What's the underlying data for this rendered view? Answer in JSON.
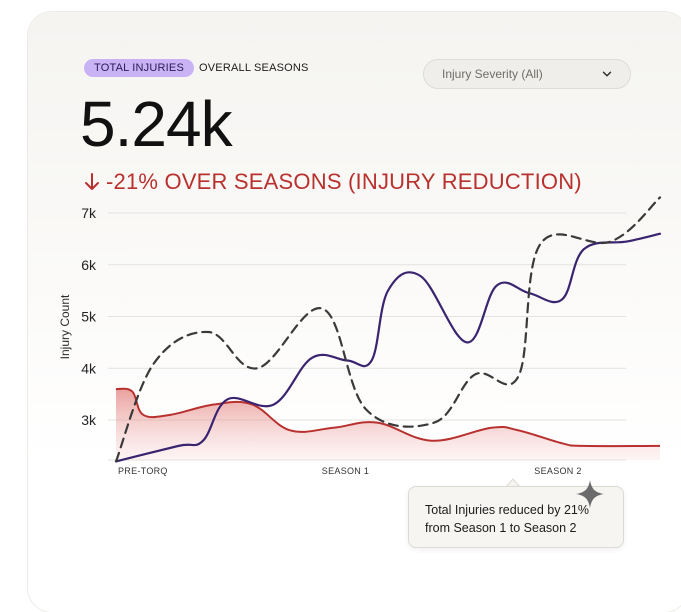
{
  "header": {
    "active_tab": "TOTAL INJURIES",
    "secondary_tab": "OVERALL SEASONS",
    "filter": {
      "label": "Injury Severity (All)"
    }
  },
  "kpi": {
    "value": "5.24k",
    "change_text": "-21% OVER SEASONS (INJURY REDUCTION)",
    "change_color": "#b8312f"
  },
  "tooltip": {
    "line1": "Total Injuries reduced by 21%",
    "line2": "from Season 1 to Season 2"
  },
  "chart_data": {
    "type": "line",
    "ylabel": "Injury Count",
    "ylim": [
      2200,
      7300
    ],
    "y_ticks": [
      "7k",
      "6k",
      "5k",
      "4k",
      "3k"
    ],
    "y_tick_values": [
      7000,
      6000,
      5000,
      4000,
      3000
    ],
    "x_labels": [
      "PRE-TORQ",
      "SEASON 1",
      "SEASON 2"
    ],
    "x_label_positions": [
      0,
      0.455,
      0.88
    ],
    "grid": true,
    "series": [
      {
        "style": "solid",
        "color": "#3a2470",
        "x": [
          0,
          0.115,
          0.16,
          0.205,
          0.29,
          0.36,
          0.425,
          0.47,
          0.5,
          0.56,
          0.645,
          0.7,
          0.76,
          0.82,
          0.86,
          0.94,
          1.0
        ],
        "y": [
          2200,
          2500,
          2600,
          3400,
          3300,
          4200,
          4150,
          4150,
          5500,
          5780,
          4500,
          5600,
          5450,
          5330,
          6300,
          6450,
          6600
        ]
      },
      {
        "style": "dashed",
        "color": "#3a3a3a",
        "x": [
          0,
          0.07,
          0.17,
          0.26,
          0.38,
          0.46,
          0.585,
          0.66,
          0.74,
          0.78,
          0.91,
          1.0
        ],
        "y": [
          2200,
          4100,
          4700,
          4000,
          5150,
          3200,
          2950,
          3880,
          3850,
          6400,
          6450,
          7300
        ]
      },
      {
        "style": "area",
        "color": "#b8312f",
        "x": [
          0,
          0.03,
          0.05,
          0.1,
          0.18,
          0.25,
          0.32,
          0.4,
          0.48,
          0.58,
          0.69,
          0.74,
          0.82,
          0.86,
          1.0
        ],
        "y": [
          3600,
          3550,
          3100,
          3100,
          3300,
          3300,
          2800,
          2850,
          2950,
          2600,
          2850,
          2800,
          2550,
          2500,
          2500
        ]
      }
    ]
  }
}
